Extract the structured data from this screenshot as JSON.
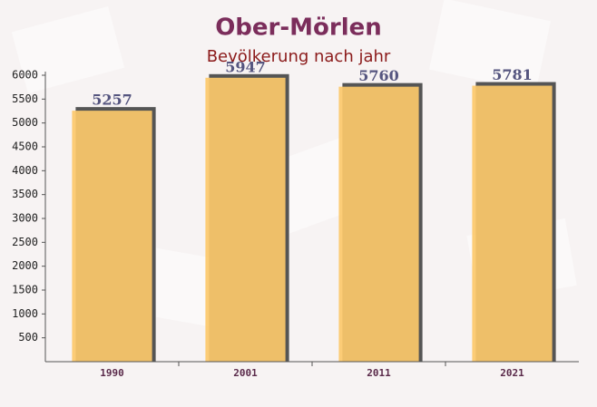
{
  "chart_data": {
    "type": "bar",
    "title": "Ober-Mörlen",
    "subtitle": "Bevölkerung nach jahr",
    "categories": [
      "1990",
      "2001",
      "2011",
      "2021"
    ],
    "values": [
      5257,
      5947,
      5760,
      5781
    ],
    "color": "#fcc96b",
    "ylim": [
      0,
      6000
    ],
    "yticks": [
      500,
      1000,
      1500,
      2000,
      2500,
      3000,
      3500,
      4000,
      4500,
      5000,
      5500,
      6000
    ],
    "grid": false
  }
}
